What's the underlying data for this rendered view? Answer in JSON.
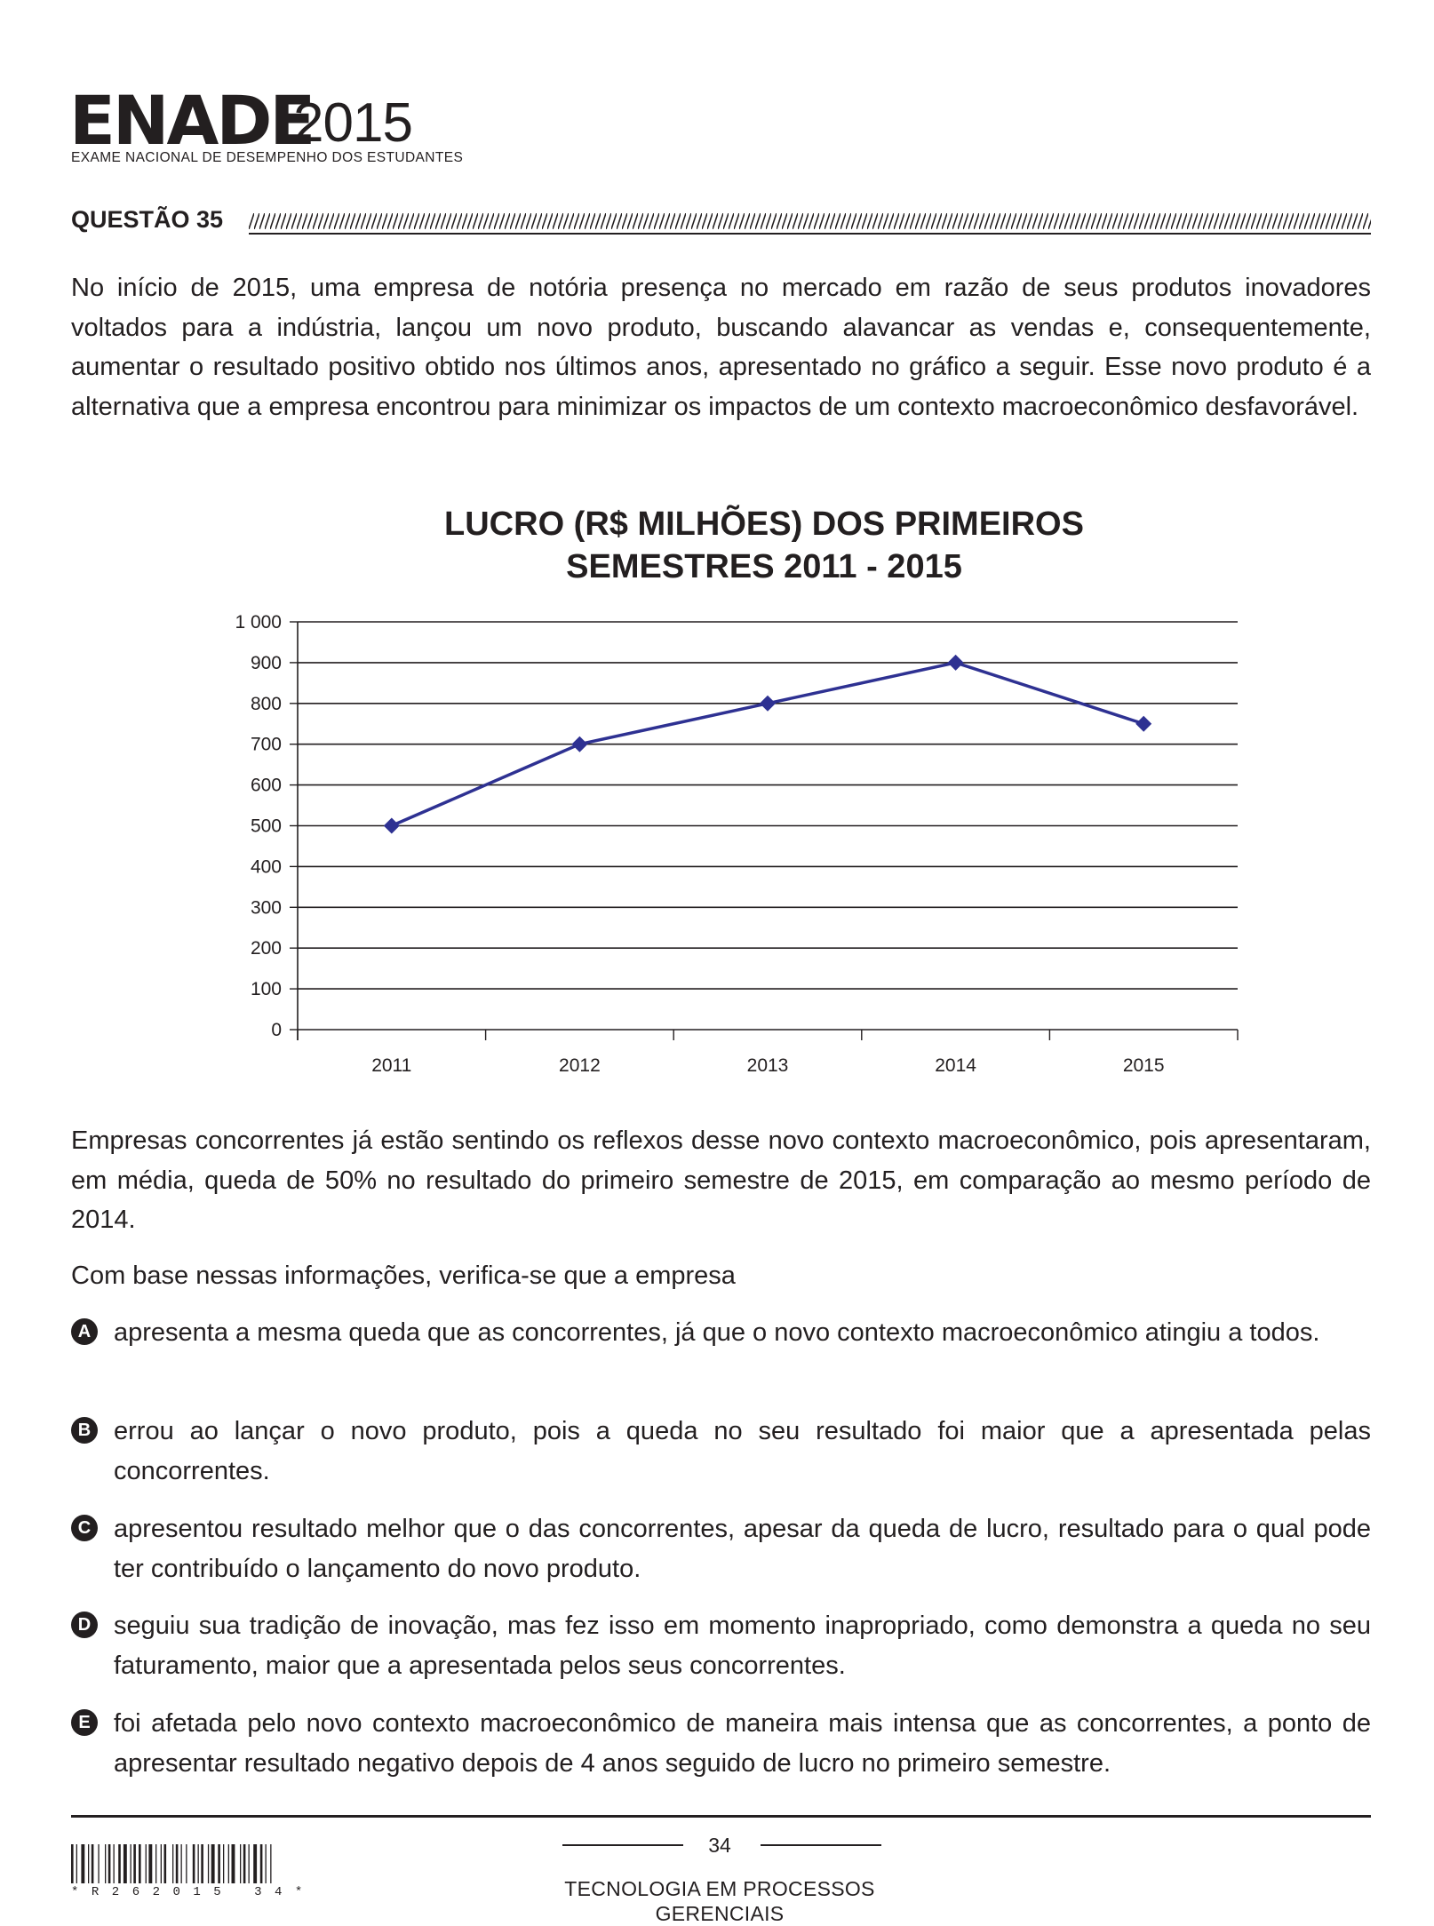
{
  "header": {
    "logo_main": "ENADE",
    "logo_year": "2015",
    "logo_subtitle": "EXAME NACIONAL DE DESEMPENHO DOS ESTUDANTES"
  },
  "question": {
    "title": "QUESTÃO 35",
    "intro": "No início de 2015, uma empresa de notória presença no mercado em razão de seus produtos inovadores voltados para a indústria, lançou um novo produto, buscando alavancar as vendas e, consequentemente, aumentar o resultado positivo obtido nos últimos anos, apresentado no gráfico a seguir. Esse novo produto é a alternativa que a empresa encontrou para minimizar os impactos de um contexto macroeconômico desfavorável.",
    "context": "Empresas concorrentes já estão sentindo os reflexos desse novo contexto macroeconômico, pois apresentaram, em média, queda de 50% no resultado do primeiro semestre de 2015, em comparação ao mesmo período de 2014.",
    "prompt": "Com base nessas informações, verifica-se que a empresa",
    "options": [
      {
        "letter": "A",
        "text": "apresenta a mesma queda que as concorrentes, já que o novo contexto macroeconômico atingiu a todos."
      },
      {
        "letter": "B",
        "text": "errou ao lançar o novo produto, pois a queda no seu resultado foi maior que a apresentada pelas concorrentes."
      },
      {
        "letter": "C",
        "text": "apresentou resultado melhor que o das concorrentes, apesar da queda de lucro, resultado para o qual pode ter contribuído o lançamento do novo produto."
      },
      {
        "letter": "D",
        "text": "seguiu sua tradição de inovação, mas fez isso em momento inapropriado, como demonstra a queda no seu faturamento, maior que a apresentada pelos seus concorrentes."
      },
      {
        "letter": "E",
        "text": "foi afetada pelo novo contexto macroeconômico de maneira mais intensa que as concorrentes, a ponto de apresentar resultado negativo depois de 4 anos seguido de lucro no primeiro semestre."
      }
    ]
  },
  "chart_data": {
    "type": "line",
    "title": [
      "LUCRO (R$ MILHÕES) DOS PRIMEIROS",
      "SEMESTRES 2011 - 2015"
    ],
    "categories": [
      "2011",
      "2012",
      "2013",
      "2014",
      "2015"
    ],
    "series": [
      {
        "values": [
          500,
          700,
          800,
          900,
          750
        ],
        "color": "#2e3192"
      }
    ],
    "ylim": [
      0,
      1000
    ],
    "yticks": [
      0,
      100,
      200,
      300,
      400,
      500,
      600,
      700,
      800,
      900,
      1000
    ],
    "ytick_labels": [
      "0",
      "100",
      "200",
      "300",
      "400",
      "500",
      "600",
      "700",
      "800",
      "900",
      "1 000"
    ],
    "grid": true,
    "xlabel": "",
    "ylabel": ""
  },
  "footer": {
    "page_number": "34",
    "course_title": "TECNOLOGIA EM PROCESSOS GERENCIAIS",
    "barcode_text": "*R262015 34*"
  }
}
